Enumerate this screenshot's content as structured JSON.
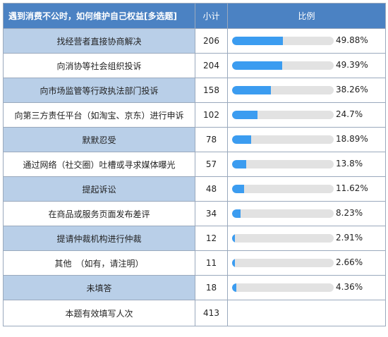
{
  "header": {
    "question": "遇到消费不公时，如何维护自己权益[多选题]",
    "count_label": "小计",
    "ratio_label": "比例"
  },
  "chart_data": {
    "type": "table",
    "title": "遇到消费不公时，如何维护自己权益[多选题]",
    "columns": [
      "小计",
      "比例"
    ],
    "rows": [
      {
        "label": "找经营者直接协商解决",
        "count": "206",
        "percent": 49.88,
        "percent_label": "49.88%"
      },
      {
        "label": "向消协等社会组织投诉",
        "count": "204",
        "percent": 49.39,
        "percent_label": "49.39%"
      },
      {
        "label": "向市场监管等行政执法部门投诉",
        "count": "158",
        "percent": 38.26,
        "percent_label": "38.26%"
      },
      {
        "label": "向第三方责任平台（如淘宝、京东）进行申诉",
        "count": "102",
        "percent": 24.7,
        "percent_label": "24.7%"
      },
      {
        "label": "默默忍受",
        "count": "78",
        "percent": 18.89,
        "percent_label": "18.89%"
      },
      {
        "label": "通过网络（社交圈）吐槽或寻求媒体曝光",
        "count": "57",
        "percent": 13.8,
        "percent_label": "13.8%"
      },
      {
        "label": "提起诉讼",
        "count": "48",
        "percent": 11.62,
        "percent_label": "11.62%"
      },
      {
        "label": "在商品或服务页面发布差评",
        "count": "34",
        "percent": 8.23,
        "percent_label": "8.23%"
      },
      {
        "label": "提请仲裁机构进行仲裁",
        "count": "12",
        "percent": 2.91,
        "percent_label": "2.91%"
      },
      {
        "label": "其他　（如有，请注明）",
        "count": "11",
        "percent": 2.66,
        "percent_label": "2.66%"
      },
      {
        "label": "未填答",
        "count": "18",
        "percent": 4.36,
        "percent_label": "4.36%"
      }
    ],
    "total": {
      "label": "本题有效填写人次",
      "count": "413"
    },
    "bar_color": "#3b9cf0",
    "track_color": "#e2e2e2"
  }
}
